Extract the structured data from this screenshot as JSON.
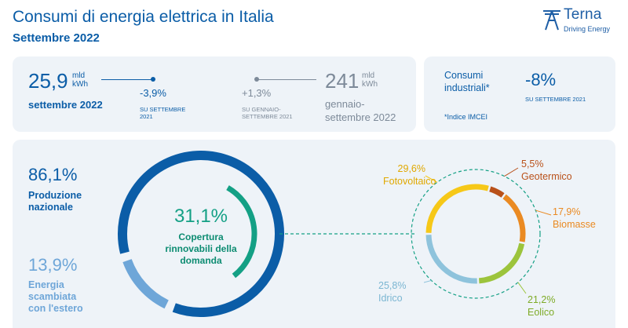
{
  "header": {
    "title": "Consumi di energia elettrica in Italia",
    "subtitle": "Settembre 2022",
    "logo_name": "Terna",
    "logo_tagline": "Driving Energy"
  },
  "monthly": {
    "value": "25,9",
    "unit_line1": "mld",
    "unit_line2": "kWh",
    "period": "settembre 2022",
    "change": "-3,9%",
    "change_note_line1": "SU SETTEMBRE",
    "change_note_line2": "2021"
  },
  "ytd": {
    "change": "+1,3%",
    "change_note_line1": "SU GENNAIO-",
    "change_note_line2": "SETTEMBRE 2021",
    "value": "241",
    "unit_line1": "mld",
    "unit_line2": "kWh",
    "period_line1": "gennaio-",
    "period_line2": "settembre 2022"
  },
  "industrial": {
    "label_line1": "Consumi",
    "label_line2": "industriali*",
    "change": "-8%",
    "change_note": "SU SETTEMBRE 2021",
    "footnote": "*Indice IMCEI"
  },
  "supply": {
    "production_pct": "86,1%",
    "production_label_line1": "Produzione",
    "production_label_line2": "nazionale",
    "exchange_pct": "13,9%",
    "exchange_label_line1": "Energia",
    "exchange_label_line2": "scambiata",
    "exchange_label_line3": "con l'estero",
    "production_share": 86.1,
    "exchange_share": 13.9
  },
  "renewables": {
    "pct": "31,1%",
    "label_line1": "Copertura",
    "label_line2": "rinnovabili della",
    "label_line3": "domanda",
    "share": 31.1
  },
  "chart_data": {
    "type": "pie",
    "categories": [
      "Fotovoltaico",
      "Geotermico",
      "Biomasse",
      "Eolico",
      "Idrico"
    ],
    "values": [
      29.6,
      5.5,
      17.9,
      21.2,
      25.8
    ],
    "labels": [
      "29,6%",
      "5,5%",
      "17,9%",
      "21,2%",
      "25,8%"
    ],
    "colors": [
      "#f6c818",
      "#b9511a",
      "#ea8a22",
      "#9cc43c",
      "#8ec3dc"
    ]
  },
  "colors": {
    "brand_blue": "#0b5da7",
    "light_blue": "#6ea6d8",
    "teal": "#14a085",
    "dark_teal": "#0d8c72",
    "panel_bg": "#eef3f8"
  }
}
